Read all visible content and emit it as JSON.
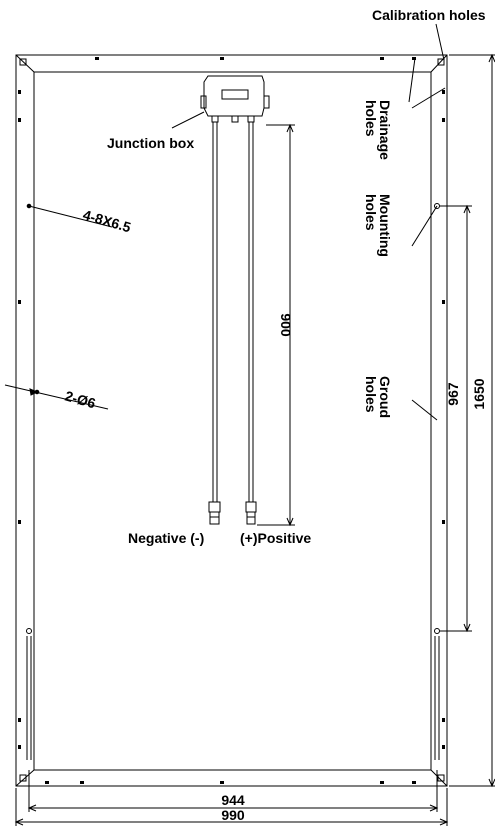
{
  "labels": {
    "calibration_holes": "Calibration holes",
    "drainage_holes_line1": "Drainage",
    "drainage_holes_line2": "holes",
    "junction_box": "Junction box",
    "mounting_holes_line1": "Mounting",
    "mounting_holes_line2": "holes",
    "ground_holes_line1": "Groud",
    "ground_holes_line2": "holes",
    "hole_spec_1": "4-8X6.5",
    "hole_spec_2": "2-Ø6",
    "negative": "Negative (-)",
    "positive": "(+)Positive"
  },
  "dimensions": {
    "cable_length": "900",
    "mounting_hole_spacing": "967",
    "module_length": "1650",
    "frame_inner_width": "944",
    "module_width": "990"
  },
  "colors": {
    "line": "#000000",
    "background": "#ffffff"
  }
}
